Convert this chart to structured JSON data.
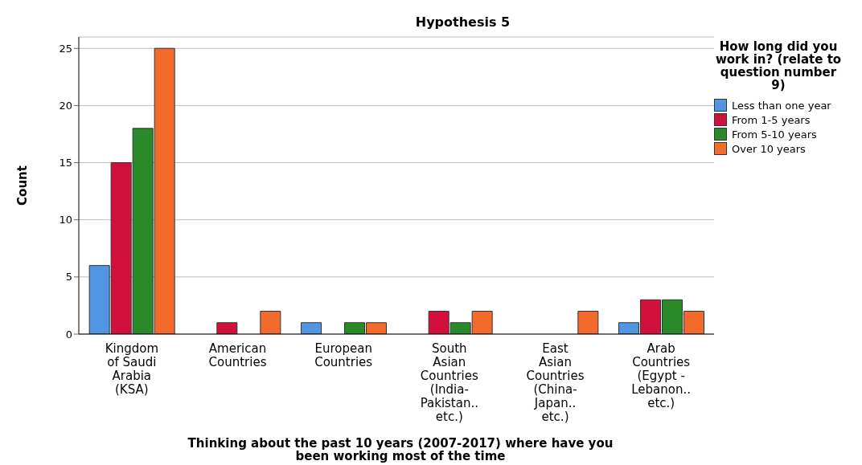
{
  "chart_data": {
    "type": "bar",
    "title": "Hypothesis 5",
    "xlabel": "Thinking about the past 10 years (2007-2017) where have you been working most of the time",
    "ylabel": "Count",
    "legend_title": "How long did you work in? (relate to question number 9)",
    "categories": [
      "Kingdom of Saudi Arabia (KSA)",
      "American Countries",
      "European Countries",
      "South Asian Countries (India-Pakistan.. etc.)",
      "East Asian Countries (China-Japan.. etc.)",
      "Arab Countries (Egypt - Lebanon.. etc.)"
    ],
    "series": [
      {
        "name": "Less than one year",
        "color": "#5196e3",
        "values": [
          6,
          0,
          1,
          0,
          0,
          1
        ]
      },
      {
        "name": "From 1-5 years",
        "color": "#d2103c",
        "values": [
          15,
          1,
          0,
          2,
          0,
          3
        ]
      },
      {
        "name": "From 5-10 years",
        "color": "#2a8a2a",
        "values": [
          18,
          0,
          1,
          1,
          0,
          3
        ]
      },
      {
        "name": "Over 10 years",
        "color": "#f36b2c",
        "values": [
          25,
          2,
          1,
          2,
          2,
          2
        ]
      }
    ],
    "ylim": [
      0,
      26
    ],
    "yticks": [
      0,
      5,
      10,
      15,
      20,
      25
    ],
    "grid": "y",
    "legend": "right"
  }
}
